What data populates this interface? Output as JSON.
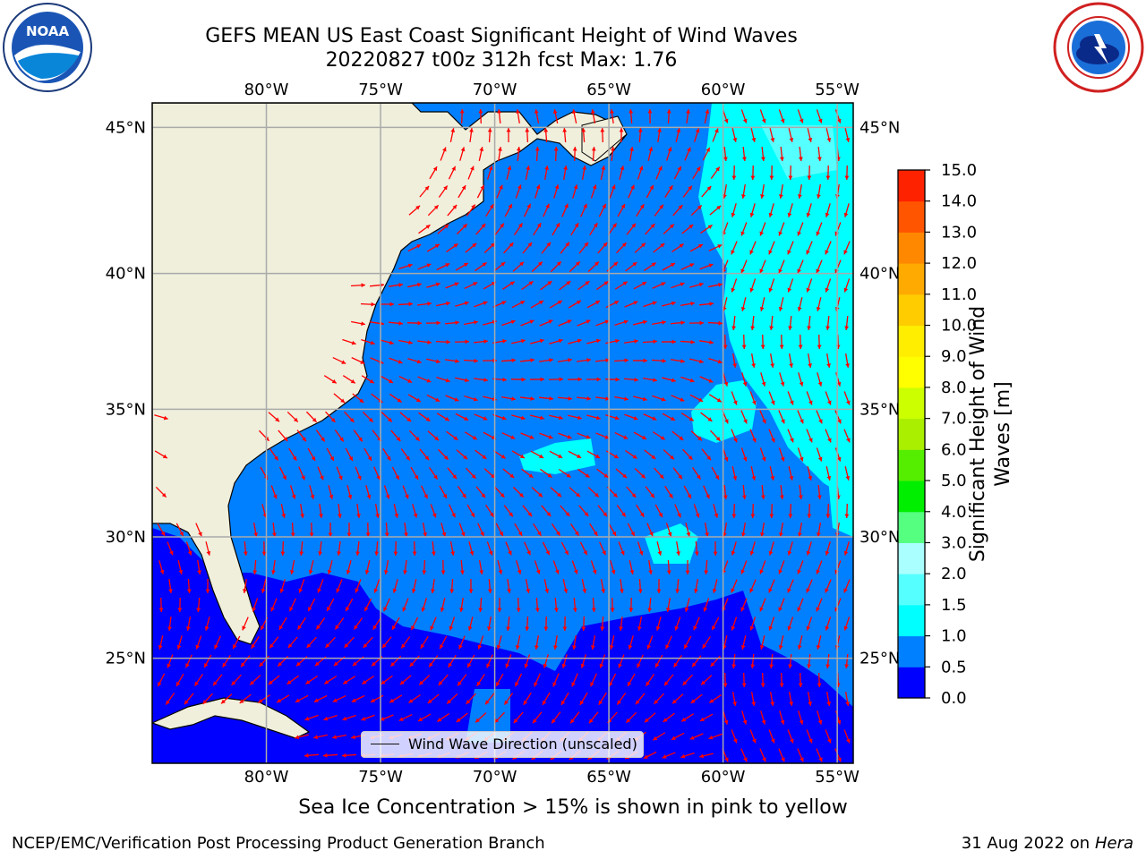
{
  "title": {
    "line1": "GEFS MEAN US East Coast Significant Height of Wind Waves",
    "line2": "20220827 t00z 312h fcst    Max: 1.76"
  },
  "map": {
    "lon_ticks": [
      "80°W",
      "75°W",
      "70°W",
      "65°W",
      "60°W",
      "55°W"
    ],
    "lon_values": [
      -80,
      -75,
      -70,
      -65,
      -60,
      -55
    ],
    "lat_ticks": [
      "45°N",
      "40°N",
      "35°N",
      "30°N",
      "25°N"
    ],
    "lat_values": [
      45,
      40,
      35,
      30,
      25
    ],
    "extent": {
      "lon_min": -85,
      "lon_max": -54.3,
      "lat_min": 20.5,
      "lat_max": 45.8
    },
    "colors": {
      "land": "#efefdc",
      "sea_low": "#0000ff",
      "sea_mid": "#0080ff",
      "sea_high": "#00ffff",
      "sea_higher": "#55ffff",
      "arrow": "#ff0000",
      "grid": "#aaaaaa"
    }
  },
  "legend": {
    "label": "Wind Wave Direction (unscaled)"
  },
  "colorbar": {
    "label": "Significant Height of Wind Waves [m]",
    "ticks": [
      "0.0",
      "0.5",
      "1.0",
      "1.5",
      "2.0",
      "3.0",
      "4.0",
      "5.0",
      "6.0",
      "7.0",
      "8.0",
      "9.0",
      "10.0",
      "11.0",
      "12.0",
      "13.0",
      "14.0",
      "15.0"
    ],
    "colors": [
      "#0000ff",
      "#0080ff",
      "#00ffff",
      "#55ffff",
      "#aaffff",
      "#55ff80",
      "#00ee00",
      "#55ee00",
      "#aaee00",
      "#ccff00",
      "#ffff00",
      "#ffee00",
      "#ffcc00",
      "#ffaa00",
      "#ff8800",
      "#ff5500",
      "#ff2200"
    ]
  },
  "ice_note": "Sea Ice Concentration > 15% is shown in pink to yellow",
  "footer": {
    "left": "NCEP/EMC/Verification Post Processing Product Generation Branch",
    "right_date": "31 Aug 2022 on",
    "right_host": "Hera"
  },
  "logos": {
    "noaa_text": "NOAA"
  }
}
